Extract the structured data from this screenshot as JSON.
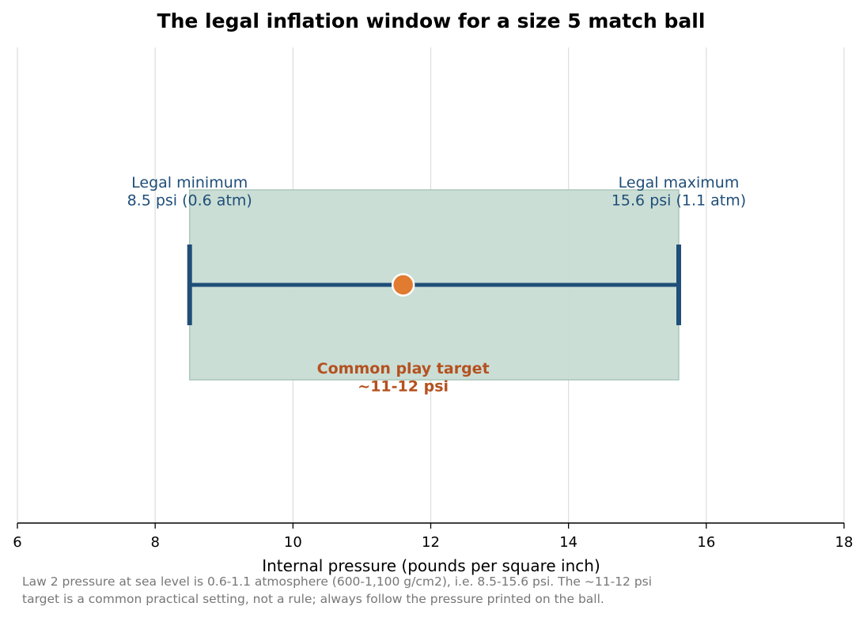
{
  "chart_data": {
    "type": "range",
    "title": "The legal inflation window for a size 5 match ball",
    "xlabel": "Internal pressure (pounds per square inch)",
    "ylabel": "",
    "xlim": [
      6,
      18
    ],
    "xticks": [
      6,
      8,
      10,
      12,
      14,
      16,
      18
    ],
    "xtick_labels": [
      "6",
      "8",
      "10",
      "12",
      "14",
      "16",
      "18"
    ],
    "grid": "vertical",
    "legal_range": {
      "min": 8.5,
      "max": 15.6
    },
    "target": {
      "value": 11.6
    },
    "annotations": {
      "min_label": [
        "Legal minimum",
        "8.5 psi (0.6 atm)"
      ],
      "max_label": [
        "Legal maximum",
        "15.6 psi (1.1 atm)"
      ],
      "target_label": [
        "Common play target",
        "~11-12 psi"
      ]
    },
    "note_lines": [
      "Law 2 pressure at sea level is 0.6-1.1 atmosphere (600-1,100 g/cm2), i.e. 8.5-15.6 psi. The ~11-12 psi",
      "target is a common practical setting, not a rule; always follow the pressure printed on the ball."
    ],
    "colors": {
      "band_fill": "#c8dcd4",
      "band_stroke": "#a9c7ba",
      "range_line": "#1f4e79",
      "target_marker": "#e07b30",
      "target_text": "#b5511f",
      "bound_text": "#1f4e79",
      "grid": "#dddddd",
      "note_text": "#777777"
    }
  }
}
